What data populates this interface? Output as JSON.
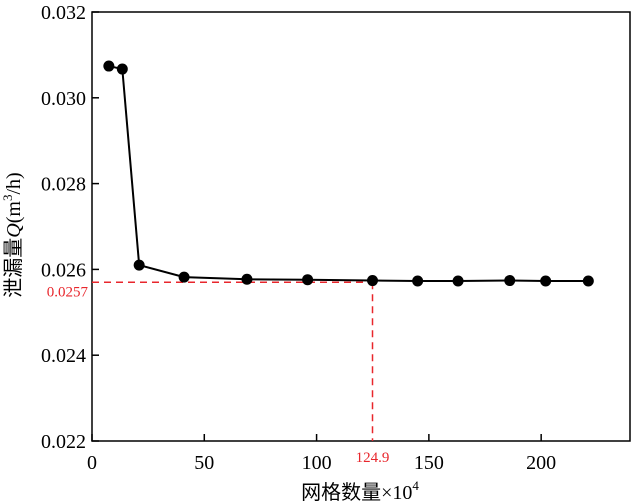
{
  "chart_data": {
    "type": "line",
    "title": "",
    "xlabel": "网格数量×10",
    "xlabel_superscript": "4",
    "ylabel_prefix": "泄漏量",
    "ylabel_var": "Q",
    "ylabel_unit_open": "(m",
    "ylabel_unit_sup": "3",
    "ylabel_unit_close": "/h)",
    "xlim": [
      0,
      240
    ],
    "ylim": [
      0.022,
      0.032
    ],
    "x_ticks": [
      0,
      50,
      100,
      150,
      200
    ],
    "x_tick_labels": [
      "0",
      "50",
      "100",
      "150",
      "200"
    ],
    "y_ticks": [
      0.022,
      0.024,
      0.026,
      0.028,
      0.03,
      0.032
    ],
    "y_tick_labels": [
      "0.022",
      "0.024",
      "0.026",
      "0.028",
      "0.030",
      "0.032"
    ],
    "grid": false,
    "series": [
      {
        "color": "#000000",
        "marker": "circle",
        "x": [
          7.5,
          13.5,
          21,
          41,
          69,
          96,
          124.9,
          145,
          163,
          186,
          202,
          221
        ],
        "y": [
          0.03074,
          0.03067,
          0.0261,
          0.02582,
          0.02577,
          0.02576,
          0.02574,
          0.02573,
          0.02573,
          0.02574,
          0.02573,
          0.02573
        ]
      }
    ],
    "reference": {
      "x": 124.9,
      "y": 0.0257,
      "x_label": "124.9",
      "y_label": "0.0257",
      "color": "#e8262c"
    }
  }
}
